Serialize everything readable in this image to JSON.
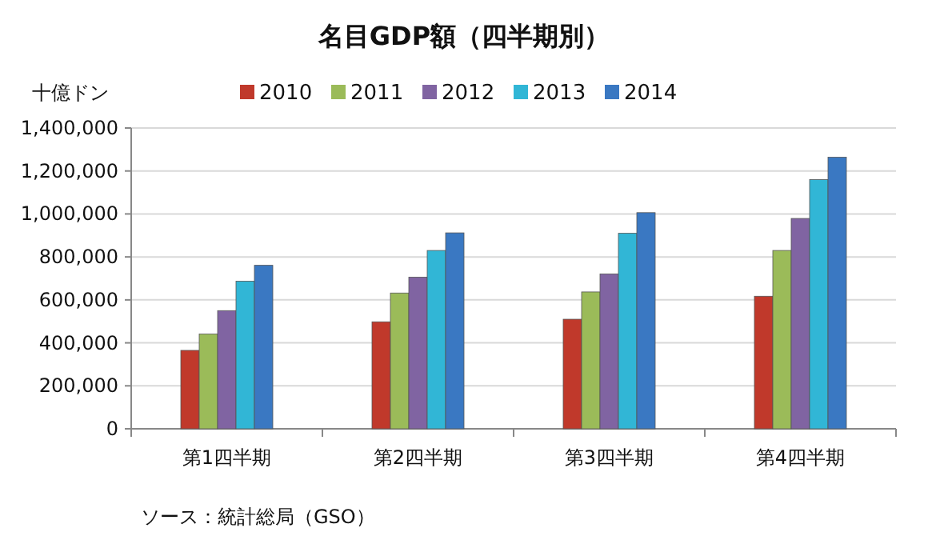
{
  "chart_data": {
    "type": "bar",
    "title": "名目GDP額（四半期別）",
    "ylabel": "十億ドン",
    "annotations": [
      "ソース：統計総局（GSO）"
    ],
    "categories": [
      "第1四半期",
      "第2四半期",
      "第3四半期",
      "第4四半期"
    ],
    "series": [
      {
        "name": "2010",
        "color": "#c0392b",
        "values": [
          365000,
          498000,
          510000,
          617000
        ]
      },
      {
        "name": "2011",
        "color": "#9bbb59",
        "values": [
          441000,
          632000,
          637000,
          830000
        ]
      },
      {
        "name": "2012",
        "color": "#8064a2",
        "values": [
          550000,
          706000,
          721000,
          979000
        ]
      },
      {
        "name": "2013",
        "color": "#31b6d6",
        "values": [
          687000,
          830000,
          910000,
          1160000
        ]
      },
      {
        "name": "2014",
        "color": "#3a78c2",
        "values": [
          761000,
          912000,
          1006000,
          1264000
        ]
      }
    ],
    "ylim": [
      0,
      1400000
    ],
    "yticks": [
      {
        "value": 0,
        "label": "0"
      },
      {
        "value": 200000,
        "label": "200,000"
      },
      {
        "value": 400000,
        "label": "400,000"
      },
      {
        "value": 600000,
        "label": "600,000"
      },
      {
        "value": 800000,
        "label": "800,000"
      },
      {
        "value": 1000000,
        "label": "1,000,000"
      },
      {
        "value": 1200000,
        "label": "1,200,000"
      },
      {
        "value": 1400000,
        "label": "1,400,000"
      }
    ],
    "grid": "y",
    "legend": "top"
  }
}
